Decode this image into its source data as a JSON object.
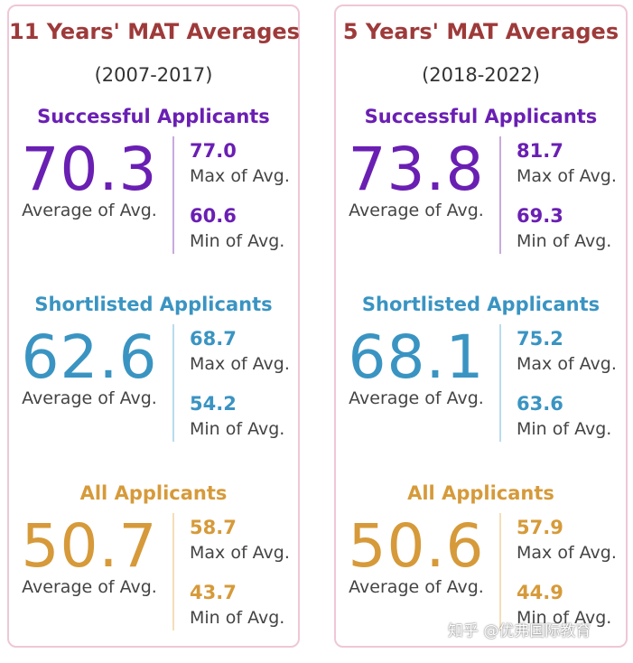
{
  "colors": {
    "successful": "#6a1fb3",
    "shortlisted": "#3a94c2",
    "all": "#d69a3a",
    "successful_divider": "#c9a9e0",
    "shortlisted_divider": "#b8dcef",
    "all_divider": "#f3dfb9"
  },
  "cards": [
    {
      "title": "11 Years' MAT Averages",
      "period": "(2007-2017)",
      "sections": [
        {
          "name": "Successful Applicants",
          "average": "70.3",
          "average_label": "Average of Avg.",
          "max": "77.0",
          "max_label": "Max of Avg.",
          "min": "60.6",
          "min_label": "Min of Avg."
        },
        {
          "name": "Shortlisted Applicants",
          "average": "62.6",
          "average_label": "Average of Avg.",
          "max": "68.7",
          "max_label": "Max of Avg.",
          "min": "54.2",
          "min_label": "Min of Avg."
        },
        {
          "name": "All Applicants",
          "average": "50.7",
          "average_label": "Average of Avg.",
          "max": "58.7",
          "max_label": "Max of Avg.",
          "min": "43.7",
          "min_label": "Min of Avg."
        }
      ]
    },
    {
      "title": "5 Years' MAT Averages",
      "period": "(2018-2022)",
      "sections": [
        {
          "name": "Successful Applicants",
          "average": "73.8",
          "average_label": "Average of Avg.",
          "max": "81.7",
          "max_label": "Max of Avg.",
          "min": "69.3",
          "min_label": "Min of Avg."
        },
        {
          "name": "Shortlisted Applicants",
          "average": "68.1",
          "average_label": "Average of Avg.",
          "max": "75.2",
          "max_label": "Max of Avg.",
          "min": "63.6",
          "min_label": "Min of Avg."
        },
        {
          "name": "All Applicants",
          "average": "50.6",
          "average_label": "Average of Avg.",
          "max": "57.9",
          "max_label": "Max of Avg.",
          "min": "44.9",
          "min_label": "Min of Avg."
        }
      ]
    }
  ],
  "watermark": "知乎 @优弗国际教育"
}
